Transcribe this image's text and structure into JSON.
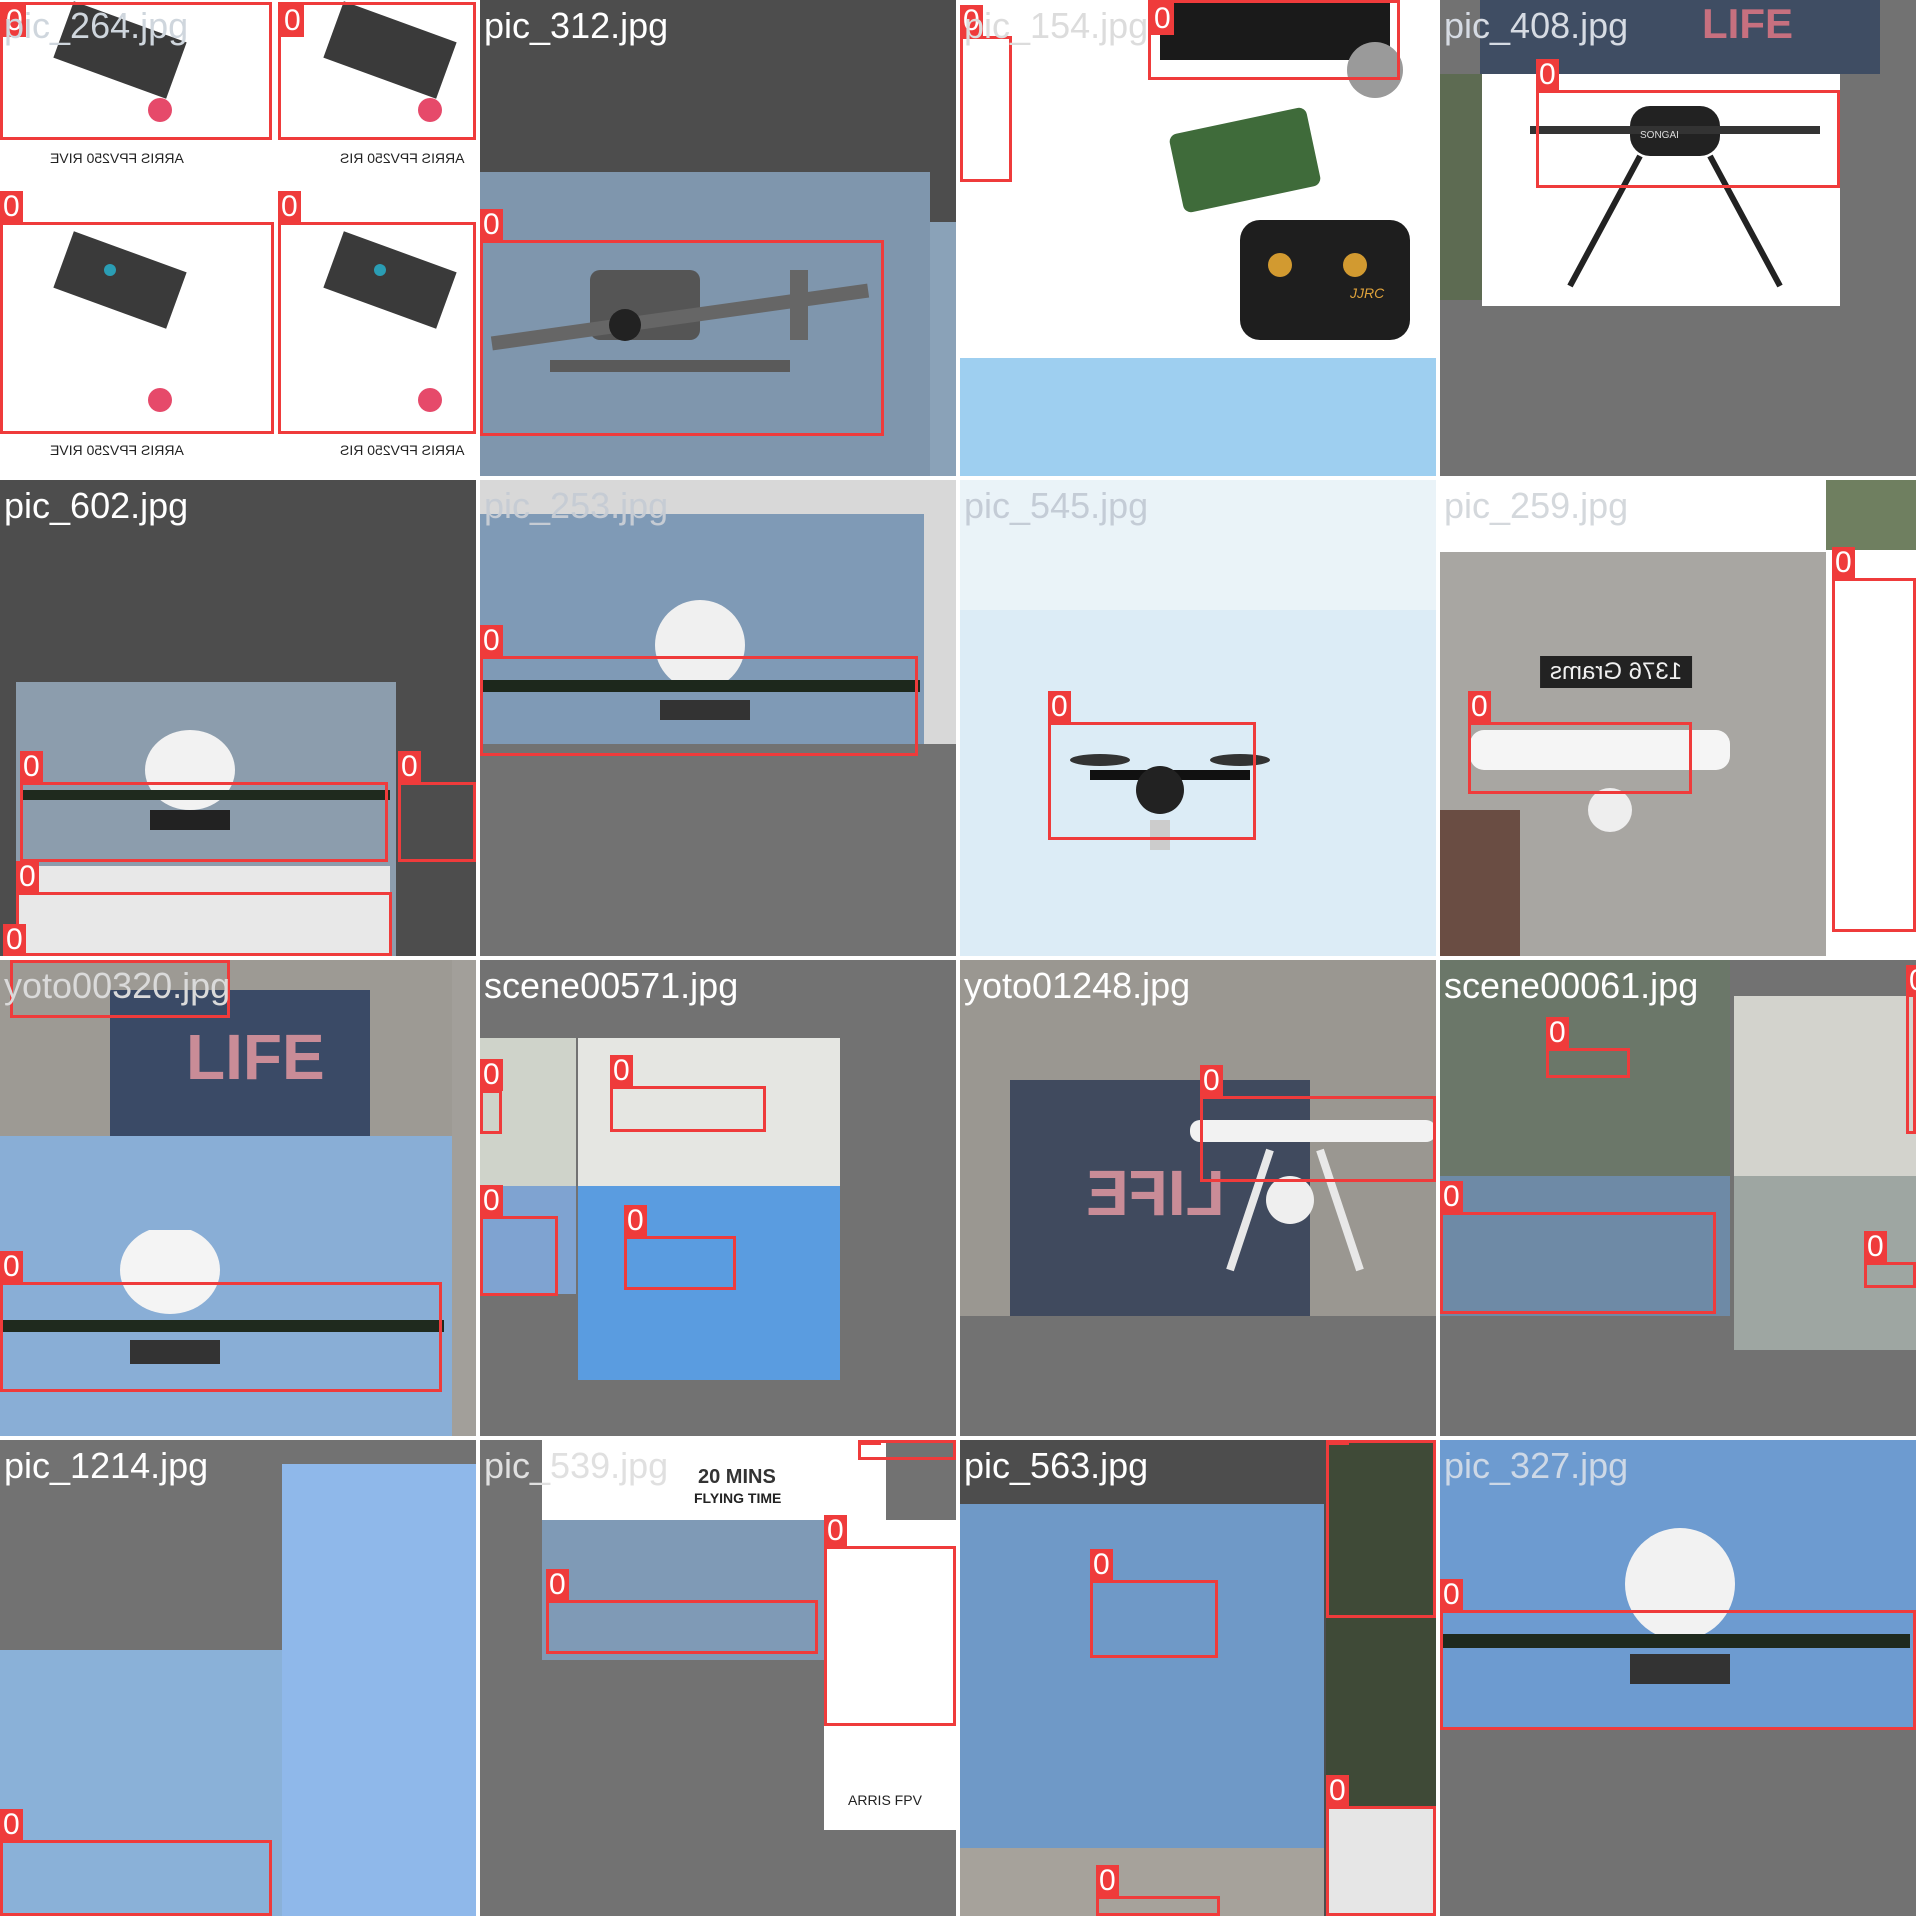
{
  "mosaic": {
    "tiles": [
      {
        "label": "pic_264.jpg",
        "class_labels": [
          "0",
          "0",
          "0",
          "0"
        ],
        "captions": [
          "ARRIS FPV250 RIVE",
          "ARRIS FPV250 RIS",
          "ARRIS FPV250 RIVE",
          "ARRIS FPV250 RIS"
        ]
      },
      {
        "label": "pic_312.jpg",
        "class_labels": [
          "0"
        ]
      },
      {
        "label": "pic_154.jpg",
        "class_labels": [
          "0",
          "0"
        ],
        "captions": [
          "JJRC"
        ]
      },
      {
        "label": "pic_408.jpg",
        "class_labels": [
          "0"
        ],
        "captions": [
          "LIFE",
          "SONGAI"
        ]
      },
      {
        "label": "pic_602.jpg",
        "class_labels": [
          "0",
          "0",
          "0",
          "0"
        ]
      },
      {
        "label": "pic_253.jpg",
        "class_labels": [
          "0"
        ]
      },
      {
        "label": "pic_545.jpg",
        "class_labels": [
          "0"
        ]
      },
      {
        "label": "pic_259.jpg",
        "class_labels": [
          "0",
          "0"
        ],
        "captions": [
          "1376 Grams"
        ]
      },
      {
        "label": "yoto00320.jpg",
        "class_labels": [
          "0"
        ],
        "captions": [
          "LIFE"
        ]
      },
      {
        "label": "scene00571.jpg",
        "class_labels": [
          "0",
          "0",
          "0",
          "0"
        ]
      },
      {
        "label": "yoto01248.jpg",
        "class_labels": [
          "0"
        ],
        "captions": [
          "LIFE"
        ]
      },
      {
        "label": "scene00061.jpg",
        "class_labels": [
          "0",
          "0",
          "0",
          "0"
        ]
      },
      {
        "label": "pic_1214.jpg",
        "class_labels": [
          "0"
        ]
      },
      {
        "label": "pic_539.jpg",
        "class_labels": [
          "0",
          "0",
          "0"
        ],
        "captions": [
          "20 MINS",
          "FLYING TIME",
          "ARRIS FPV"
        ]
      },
      {
        "label": "pic_563.jpg",
        "class_labels": [
          "0",
          "0",
          "0",
          "0"
        ]
      },
      {
        "label": "pic_327.jpg",
        "class_labels": [
          "0"
        ]
      }
    ]
  },
  "colors": {
    "bbox": "#ef3b3b",
    "padding_gray": "#727272",
    "sky": "#8fb3d6",
    "wall": "#a6a29c",
    "label": "#ffffff"
  }
}
